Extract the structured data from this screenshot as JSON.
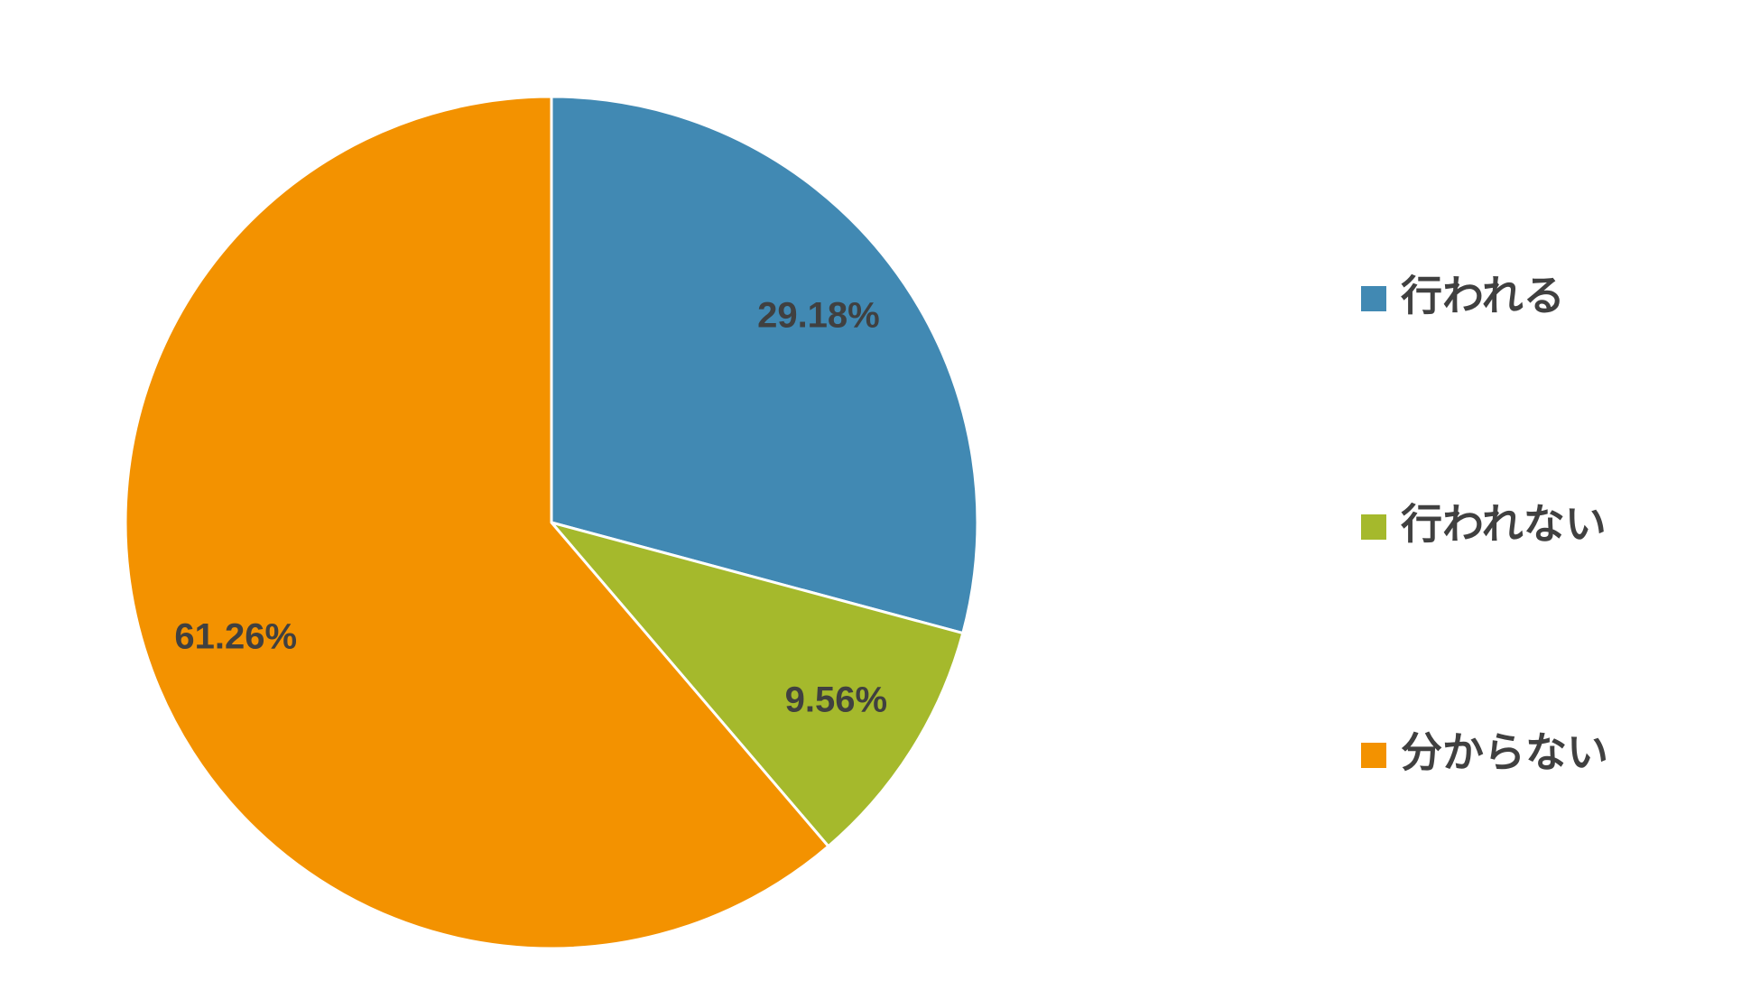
{
  "chart_data": {
    "type": "pie",
    "categories": [
      "行われる",
      "行われない",
      "分からない"
    ],
    "values": [
      29.18,
      9.56,
      61.26
    ],
    "value_labels": [
      "29.18%",
      "9.56%",
      "61.26%"
    ],
    "colors": [
      "#4189b3",
      "#a5b92c",
      "#f39200"
    ],
    "legend": "right"
  }
}
